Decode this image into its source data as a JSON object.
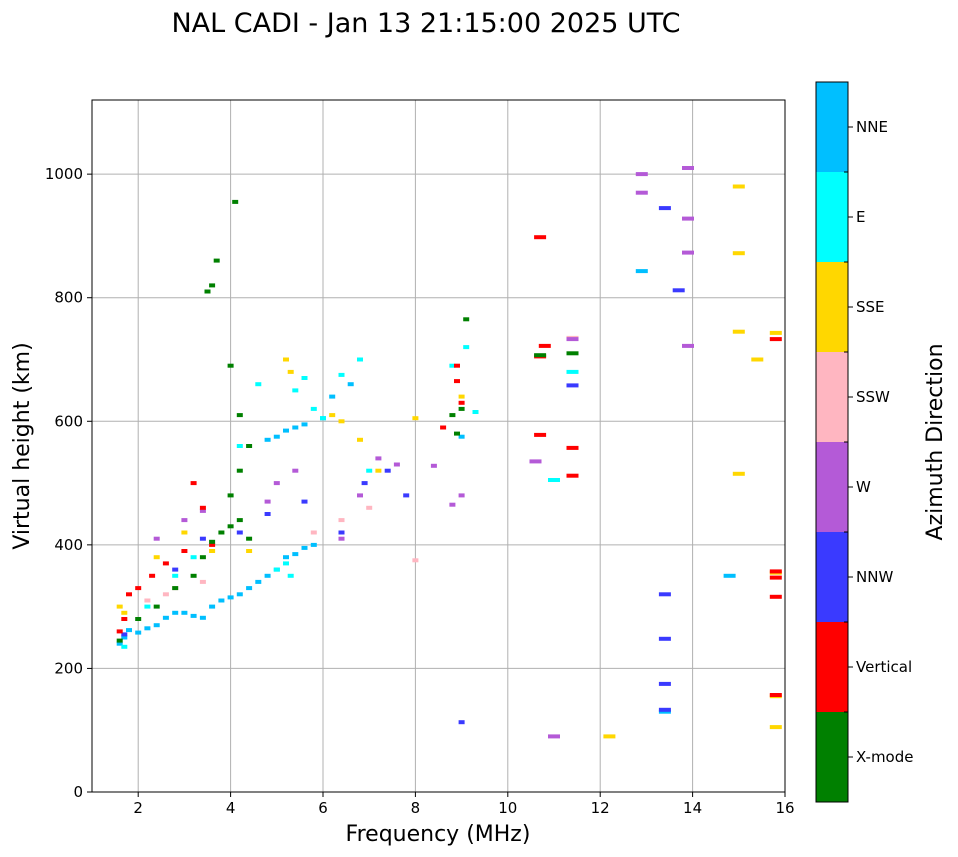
{
  "chart_data": {
    "type": "scatter",
    "title": "NAL CADI - Jan 13 21:15:00 2025 UTC",
    "xlabel": "Frequency (MHz)",
    "ylabel": "Virtual height (km)",
    "xlim": [
      1,
      16
    ],
    "ylim": [
      0,
      1120
    ],
    "xticks": [
      2,
      4,
      6,
      8,
      10,
      12,
      14,
      16
    ],
    "yticks": [
      0,
      200,
      400,
      600,
      800,
      1000
    ],
    "grid": true,
    "colorbar": {
      "label": "Azimuth Direction",
      "categories": [
        {
          "name": "X-mode",
          "color": "#008000"
        },
        {
          "name": "Vertical",
          "color": "#ff0000"
        },
        {
          "name": "NNW",
          "color": "#3a3aff"
        },
        {
          "name": "W",
          "color": "#b45ad7"
        },
        {
          "name": "SSW",
          "color": "#ffb6c1"
        },
        {
          "name": "SSE",
          "color": "#ffd700"
        },
        {
          "name": "E",
          "color": "#00ffff"
        },
        {
          "name": "NNE",
          "color": "#00bfff"
        }
      ]
    },
    "series": [
      {
        "name": "NNE",
        "points": [
          [
            1.6,
            240
          ],
          [
            1.7,
            250
          ],
          [
            1.8,
            262
          ],
          [
            2.0,
            258
          ],
          [
            2.2,
            265
          ],
          [
            2.4,
            270
          ],
          [
            2.6,
            282
          ],
          [
            2.8,
            290
          ],
          [
            3.0,
            290
          ],
          [
            3.2,
            285
          ],
          [
            3.4,
            282
          ],
          [
            3.6,
            300
          ],
          [
            3.8,
            310
          ],
          [
            4.0,
            315
          ],
          [
            4.2,
            320
          ],
          [
            4.4,
            330
          ],
          [
            4.6,
            340
          ],
          [
            4.8,
            350
          ],
          [
            5.0,
            360
          ],
          [
            5.2,
            380
          ],
          [
            5.4,
            385
          ],
          [
            5.6,
            395
          ],
          [
            5.8,
            400
          ],
          [
            4.8,
            570
          ],
          [
            5.0,
            575
          ],
          [
            5.2,
            585
          ],
          [
            5.4,
            590
          ],
          [
            5.6,
            595
          ],
          [
            6.0,
            605
          ],
          [
            6.2,
            640
          ],
          [
            6.6,
            660
          ],
          [
            9.0,
            575
          ],
          [
            12.9,
            843
          ],
          [
            13.4,
            130
          ],
          [
            14.8,
            350
          ]
        ]
      },
      {
        "name": "E",
        "points": [
          [
            1.7,
            235
          ],
          [
            2.2,
            300
          ],
          [
            2.8,
            350
          ],
          [
            3.2,
            380
          ],
          [
            4.2,
            560
          ],
          [
            4.6,
            660
          ],
          [
            5.0,
            360
          ],
          [
            5.2,
            370
          ],
          [
            5.3,
            350
          ],
          [
            5.4,
            650
          ],
          [
            5.6,
            670
          ],
          [
            5.8,
            620
          ],
          [
            6.0,
            605
          ],
          [
            6.4,
            675
          ],
          [
            6.8,
            700
          ],
          [
            7.0,
            520
          ],
          [
            8.8,
            690
          ],
          [
            9.1,
            720
          ],
          [
            9.3,
            615
          ],
          [
            11.0,
            505
          ],
          [
            11.4,
            680
          ]
        ]
      },
      {
        "name": "SSE",
        "points": [
          [
            1.6,
            300
          ],
          [
            1.7,
            290
          ],
          [
            2.4,
            380
          ],
          [
            3.0,
            420
          ],
          [
            3.6,
            390
          ],
          [
            4.4,
            390
          ],
          [
            5.2,
            700
          ],
          [
            5.3,
            680
          ],
          [
            6.2,
            610
          ],
          [
            6.4,
            600
          ],
          [
            6.8,
            570
          ],
          [
            7.2,
            520
          ],
          [
            8.0,
            605
          ],
          [
            9.0,
            640
          ],
          [
            12.2,
            90
          ],
          [
            15.0,
            980
          ],
          [
            15.0,
            872
          ],
          [
            15.0,
            745
          ],
          [
            15.0,
            515
          ],
          [
            15.8,
            743
          ],
          [
            15.8,
            355
          ],
          [
            15.8,
            105
          ],
          [
            15.4,
            700
          ],
          [
            15.8,
            155
          ]
        ]
      },
      {
        "name": "SSW",
        "points": [
          [
            2.2,
            310
          ],
          [
            2.6,
            320
          ],
          [
            2.8,
            330
          ],
          [
            3.4,
            340
          ],
          [
            5.8,
            420
          ],
          [
            6.4,
            440
          ],
          [
            7.0,
            460
          ],
          [
            8.0,
            375
          ],
          [
            11.4,
            735
          ]
        ]
      },
      {
        "name": "W",
        "points": [
          [
            2.4,
            410
          ],
          [
            3.0,
            440
          ],
          [
            3.4,
            455
          ],
          [
            4.8,
            470
          ],
          [
            5.0,
            500
          ],
          [
            5.4,
            520
          ],
          [
            6.4,
            410
          ],
          [
            6.8,
            480
          ],
          [
            7.2,
            540
          ],
          [
            7.6,
            530
          ],
          [
            8.4,
            528
          ],
          [
            8.8,
            465
          ],
          [
            9.0,
            480
          ],
          [
            10.6,
            535
          ],
          [
            11.0,
            90
          ],
          [
            11.4,
            733
          ],
          [
            12.9,
            1000
          ],
          [
            12.9,
            970
          ],
          [
            13.9,
            1010
          ],
          [
            13.9,
            928
          ],
          [
            13.9,
            873
          ],
          [
            13.9,
            722
          ]
        ]
      },
      {
        "name": "NNW",
        "points": [
          [
            1.7,
            255
          ],
          [
            2.8,
            360
          ],
          [
            3.4,
            410
          ],
          [
            4.2,
            420
          ],
          [
            4.8,
            450
          ],
          [
            5.6,
            470
          ],
          [
            6.4,
            420
          ],
          [
            6.9,
            500
          ],
          [
            7.4,
            520
          ],
          [
            7.8,
            480
          ],
          [
            9.0,
            113
          ],
          [
            11.4,
            658
          ],
          [
            13.4,
            945
          ],
          [
            13.7,
            812
          ],
          [
            13.4,
            320
          ],
          [
            13.4,
            248
          ],
          [
            13.4,
            175
          ],
          [
            13.4,
            133
          ]
        ]
      },
      {
        "name": "Vertical",
        "points": [
          [
            1.6,
            260
          ],
          [
            1.7,
            280
          ],
          [
            1.8,
            320
          ],
          [
            2.0,
            330
          ],
          [
            2.3,
            350
          ],
          [
            2.6,
            370
          ],
          [
            3.0,
            390
          ],
          [
            3.2,
            500
          ],
          [
            3.4,
            460
          ],
          [
            3.6,
            400
          ],
          [
            8.6,
            590
          ],
          [
            8.9,
            690
          ],
          [
            8.9,
            665
          ],
          [
            9.0,
            630
          ],
          [
            10.7,
            898
          ],
          [
            10.7,
            705
          ],
          [
            10.8,
            722
          ],
          [
            10.7,
            578
          ],
          [
            11.4,
            557
          ],
          [
            11.4,
            512
          ],
          [
            15.8,
            733
          ],
          [
            15.8,
            357
          ],
          [
            15.8,
            347
          ],
          [
            15.8,
            316
          ],
          [
            15.8,
            157
          ]
        ]
      },
      {
        "name": "X-mode",
        "points": [
          [
            1.6,
            245
          ],
          [
            2.0,
            280
          ],
          [
            2.4,
            300
          ],
          [
            2.8,
            330
          ],
          [
            3.2,
            350
          ],
          [
            3.4,
            380
          ],
          [
            3.6,
            405
          ],
          [
            3.8,
            420
          ],
          [
            4.0,
            430
          ],
          [
            4.2,
            440
          ],
          [
            4.4,
            410
          ],
          [
            4.0,
            480
          ],
          [
            4.2,
            520
          ],
          [
            4.4,
            560
          ],
          [
            4.2,
            610
          ],
          [
            4.0,
            690
          ],
          [
            3.6,
            820
          ],
          [
            3.5,
            810
          ],
          [
            3.7,
            860
          ],
          [
            4.1,
            955
          ],
          [
            9.1,
            765
          ],
          [
            8.8,
            610
          ],
          [
            8.9,
            580
          ],
          [
            9.0,
            620
          ],
          [
            10.7,
            707
          ],
          [
            11.4,
            710
          ]
        ]
      }
    ]
  }
}
